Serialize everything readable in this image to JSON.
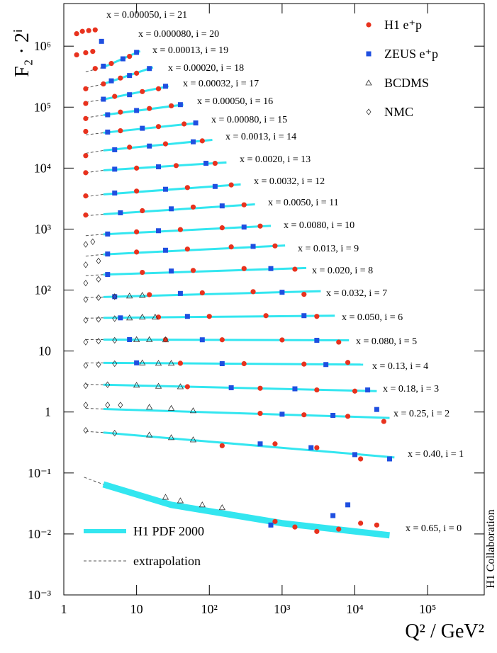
{
  "chart_data": {
    "type": "scatter",
    "xlabel": "Q² / GeV²",
    "ylabel": "F₂ · 2ⁱ",
    "annotation": "H1 Collaboration",
    "log_x": true,
    "log_y": true,
    "xlim": [
      1,
      600000
    ],
    "ylim": [
      0.001,
      5000000
    ],
    "xticks": [
      1,
      10,
      {
        "value": 100,
        "label": "10²"
      },
      {
        "value": 1000,
        "label": "10³"
      },
      {
        "value": 10000,
        "label": "10⁴"
      },
      {
        "value": 100000,
        "label": "10⁵"
      }
    ],
    "yticks": [
      {
        "value": 0.001,
        "label": "10⁻³"
      },
      {
        "value": 0.01,
        "label": "10⁻²"
      },
      {
        "value": 0.1,
        "label": "10⁻¹"
      },
      1,
      10,
      {
        "value": 100,
        "label": "10²"
      },
      {
        "value": 1000,
        "label": "10³"
      },
      {
        "value": 10000,
        "label": "10⁴"
      },
      {
        "value": 100000,
        "label": "10⁵"
      },
      {
        "value": 1000000,
        "label": "10⁶"
      }
    ],
    "legend": "top-right",
    "series": [
      {
        "name": "H1 e⁺p",
        "color": "#e8321e",
        "marker": "circle",
        "x": [
          1.5,
          1.8,
          2.2,
          2.7,
          1.5,
          2,
          2.5,
          2.7,
          4.5,
          8,
          2,
          3.5,
          6,
          10,
          2,
          5,
          12,
          20,
          2,
          6,
          15,
          30,
          2,
          6,
          20,
          45,
          2,
          8,
          25,
          80,
          2,
          10,
          35,
          120,
          2,
          10,
          50,
          200,
          2,
          12,
          60,
          300,
          10,
          40,
          150,
          500,
          10,
          50,
          200,
          800,
          12,
          60,
          300,
          1500,
          15,
          80,
          400,
          2000,
          20,
          100,
          600,
          3000,
          25,
          150,
          1000,
          6000,
          40,
          300,
          2000,
          8000,
          50,
          500,
          3000,
          10000,
          500,
          2000,
          8000,
          25000,
          150,
          800,
          3000,
          12000,
          800,
          1500,
          3000,
          6000,
          12000,
          20000
        ],
        "values": [
          1600000,
          1750000,
          1800000,
          1850000,
          720000,
          780000,
          820000,
          430000,
          520000,
          680000,
          200000,
          240000,
          300000,
          360000,
          115000,
          150000,
          180000,
          200000,
          65000,
          83000,
          95000,
          105000,
          40000,
          41000,
          48000,
          53000,
          16000,
          22000,
          25000,
          28000,
          8400,
          10000,
          11000,
          12000,
          3500,
          4200,
          4800,
          5300,
          1700,
          2000,
          2300,
          2500,
          900,
          980,
          1050,
          1120,
          420,
          470,
          510,
          530,
          195,
          210,
          225,
          220,
          84,
          90,
          94,
          85,
          36,
          37,
          38,
          37,
          15.4,
          15.3,
          15.2,
          14,
          6.3,
          6.2,
          6.1,
          6.5,
          2.6,
          2.45,
          2.3,
          2.2,
          0.95,
          0.9,
          0.85,
          0.7,
          0.28,
          0.3,
          0.26,
          0.17,
          0.016,
          0.013,
          0.011,
          0.012,
          0.015,
          0.014
        ]
      },
      {
        "name": "ZEUS e⁺p",
        "color": "#1f4fe0",
        "marker": "square",
        "x": [
          3.3,
          3.5,
          6.5,
          10,
          4.5,
          8,
          15,
          3.5,
          8,
          25,
          4,
          10,
          40,
          4,
          12,
          65,
          5,
          15,
          60,
          5,
          20,
          90,
          5,
          25,
          120,
          6,
          30,
          150,
          4,
          20,
          300,
          4,
          25,
          400,
          4,
          30,
          700,
          5,
          40,
          1000,
          6,
          50,
          2000,
          8,
          80,
          3000,
          10,
          150,
          4000,
          200,
          1500,
          15000,
          1000,
          5000,
          20000,
          500,
          2500,
          10000,
          30000,
          700,
          5000,
          8000
        ],
        "values": [
          1200000,
          470000,
          620000,
          790000,
          270000,
          330000,
          430000,
          135000,
          160000,
          220000,
          75000,
          88000,
          110000,
          39000,
          45000,
          55000,
          20000,
          23000,
          27000,
          9600,
          10500,
          12000,
          3900,
          4500,
          5000,
          1850,
          2150,
          2400,
          830,
          940,
          1080,
          390,
          450,
          520,
          180,
          205,
          225,
          78,
          88,
          92,
          35,
          37,
          38,
          15.4,
          15.3,
          15,
          6.4,
          6.2,
          6,
          2.5,
          2.4,
          2.3,
          0.92,
          0.88,
          1.1,
          0.3,
          0.26,
          0.2,
          0.17,
          0.014,
          0.02,
          0.03
        ]
      },
      {
        "name": "BCDMS",
        "color": "#333333",
        "marker": "triangle",
        "x": [
          8,
          12,
          8,
          12,
          18,
          10,
          15,
          25,
          12,
          20,
          30,
          10,
          20,
          40,
          15,
          30,
          60,
          15,
          30,
          60,
          25,
          40,
          80,
          150
        ],
        "values": [
          80,
          82,
          35,
          36,
          36,
          15.4,
          15.4,
          15.3,
          6.4,
          6.3,
          6.3,
          2.75,
          2.65,
          2.6,
          1.2,
          1.15,
          1.05,
          0.42,
          0.38,
          0.35,
          0.04,
          0.035,
          0.03,
          0.027
        ]
      },
      {
        "name": "NMC",
        "color": "#333333",
        "marker": "diamond",
        "x": [
          2,
          2.5,
          2,
          3,
          2,
          3,
          2,
          3,
          5,
          2,
          3,
          5,
          2,
          3,
          5,
          2,
          3,
          5,
          2,
          4,
          2,
          4,
          6,
          2,
          5
        ],
        "values": [
          560,
          620,
          260,
          300,
          130,
          150,
          70,
          75,
          78,
          32,
          33,
          34,
          14,
          14.5,
          15,
          5.8,
          6,
          6.2,
          2.7,
          2.8,
          1.3,
          1.3,
          1.3,
          0.5,
          0.45
        ]
      }
    ],
    "fit_name": "H1 PDF 2000",
    "fit_color": "#33e6f0",
    "extrapolation_name": "extrapolation",
    "bins": [
      {
        "label": "x = 0.000050, i = 21"
      },
      {
        "label": "x = 0.000080, i = 20"
      },
      {
        "label": "x = 0.00013, i = 19",
        "fit_x": [
          2,
          3.5,
          11.2
        ],
        "fit_values": [
          380000,
          450000,
          830000
        ]
      },
      {
        "label": "x = 0.00020, i = 18",
        "fit_x": [
          2,
          3.5,
          16.8
        ],
        "fit_values": [
          205000,
          240000,
          450000
        ]
      },
      {
        "label": "x = 0.00032, i = 17",
        "fit_x": [
          2,
          3.5,
          27.5
        ],
        "fit_values": [
          120000,
          134000,
          220000
        ]
      },
      {
        "label": "x = 0.00050, i = 16",
        "fit_x": [
          2,
          3.5,
          44
        ],
        "fit_values": [
          67000,
          74000,
          110000
        ]
      },
      {
        "label": "x = 0.00080, i = 15",
        "fit_x": [
          2,
          3.5,
          70
        ],
        "fit_values": [
          35000,
          38000,
          55000
        ]
      },
      {
        "label": "x = 0.0013, i = 14",
        "fit_x": [
          2,
          3.5,
          110
        ],
        "fit_values": [
          17500,
          19500,
          29000
        ]
      },
      {
        "label": "x = 0.0020, i = 13",
        "fit_x": [
          2,
          3.5,
          172
        ],
        "fit_values": [
          8400,
          9200,
          12400
        ]
      },
      {
        "label": "x = 0.0032, i = 12",
        "fit_x": [
          2,
          3.5,
          270
        ],
        "fit_values": [
          3400,
          3700,
          5400
        ]
      },
      {
        "label": "x = 0.0050, i = 11",
        "fit_x": [
          2,
          3.5,
          424
        ],
        "fit_values": [
          1650,
          1750,
          2550
        ]
      },
      {
        "label": "x = 0.0080, i = 10",
        "fit_x": [
          2,
          3.5,
          700
        ],
        "fit_values": [
          780,
          820,
          1130
        ]
      },
      {
        "label": "x = 0.013, i = 9",
        "fit_x": [
          2,
          3.5,
          1100
        ],
        "fit_values": [
          360,
          384,
          538
        ]
      },
      {
        "label": "x = 0.020, i = 8",
        "fit_x": [
          2,
          3.5,
          2150
        ],
        "fit_values": [
          172,
          179,
          230
        ]
      },
      {
        "label": "x = 0.032, i = 7",
        "fit_x": [
          2,
          3.5,
          3400
        ],
        "fit_values": [
          75,
          77,
          96
        ]
      },
      {
        "label": "x = 0.050, i = 6",
        "fit_x": [
          2,
          3.5,
          5300
        ],
        "fit_values": [
          34.5,
          35,
          38
        ]
      },
      {
        "label": "x = 0.080, i = 5",
        "fit_x": [
          2,
          3.5,
          8300
        ],
        "fit_values": [
          15.4,
          15.4,
          15
        ]
      },
      {
        "label": "x = 0.13, i = 4",
        "fit_x": [
          2,
          3.5,
          13000
        ],
        "fit_values": [
          6.4,
          6.4,
          6
        ]
      },
      {
        "label": "x = 0.18, i = 3",
        "fit_x": [
          2,
          3.5,
          20000
        ],
        "fit_values": [
          2.85,
          2.8,
          2.2
        ]
      },
      {
        "label": "x = 0.25, i = 2",
        "fit_x": [
          2,
          3.5,
          30000
        ],
        "fit_values": [
          1.15,
          1.12,
          0.8
        ]
      },
      {
        "label": "x = 0.40, i = 1",
        "fit_x": [
          2,
          3.5,
          35000
        ],
        "fit_values": [
          0.48,
          0.46,
          0.18
        ]
      },
      {
        "label": "x = 0.65, i = 0",
        "fit_x": [
          1.9,
          3.5,
          30,
          1000,
          30000
        ],
        "fit_values": [
          0.085,
          0.065,
          0.03,
          0.015,
          0.0095
        ]
      }
    ]
  }
}
